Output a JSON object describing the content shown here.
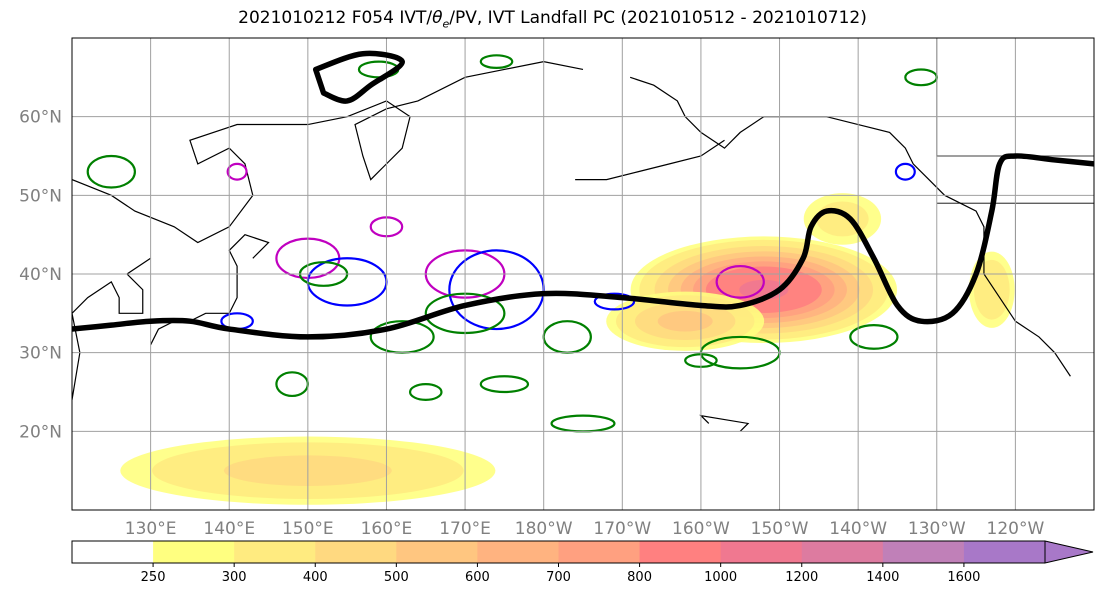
{
  "title_pre": "2021010212 F054 IVT/",
  "title_theta": "θ",
  "title_sub": "e",
  "title_post": "/PV, IVT Landfall PC (2021010512 - 2021010712)",
  "chart_data": {
    "type": "heatmap",
    "map": {
      "lon_range": [
        120,
        250
      ],
      "lat_range": [
        10,
        70
      ],
      "lat_ticks": [
        {
          "lat": 20,
          "label": "20°N"
        },
        {
          "lat": 30,
          "label": "30°N"
        },
        {
          "lat": 40,
          "label": "40°N"
        },
        {
          "lat": 50,
          "label": "50°N"
        },
        {
          "lat": 60,
          "label": "60°N"
        }
      ],
      "lon_ticks": [
        {
          "lon": 130,
          "label": "130°E"
        },
        {
          "lon": 140,
          "label": "140°E"
        },
        {
          "lon": 150,
          "label": "150°E"
        },
        {
          "lon": 160,
          "label": "160°E"
        },
        {
          "lon": 170,
          "label": "170°E"
        },
        {
          "lon": 180,
          "label": "180°W"
        },
        {
          "lon": 190,
          "label": "170°W"
        },
        {
          "lon": 200,
          "label": "160°W"
        },
        {
          "lon": 210,
          "label": "150°W"
        },
        {
          "lon": 220,
          "label": "140°W"
        },
        {
          "lon": 230,
          "label": "130°W"
        },
        {
          "lon": 240,
          "label": "120°W"
        }
      ],
      "grid": true
    },
    "colorbar": {
      "levels": [
        250,
        300,
        400,
        500,
        600,
        700,
        800,
        1000,
        1200,
        1400,
        1600
      ],
      "labels": [
        "250",
        "300",
        "400",
        "500",
        "600",
        "700",
        "800",
        "1000",
        "1200",
        "1400",
        "1600"
      ],
      "colors": [
        "#ffffff",
        "#ffff80",
        "#ffeb80",
        "#ffd980",
        "#ffc680",
        "#ffb380",
        "#ffa080",
        "#ff8080",
        "#f07890",
        "#dd7ba0",
        "#c080b8",
        "#a878c8"
      ],
      "extend": "max"
    },
    "ivt_regions": [
      {
        "name": "central_pacific_ar",
        "lon": 208,
        "lat": 38,
        "peak": 1050,
        "sx": 10,
        "sy": 4
      },
      {
        "name": "ar_tail",
        "lon": 198,
        "lat": 34,
        "peak": 550,
        "sx": 8,
        "sy": 3
      },
      {
        "name": "tropical_band",
        "lon": 150,
        "lat": 15,
        "peak": 450,
        "sx": 22,
        "sy": 4
      },
      {
        "name": "west_coast",
        "lon": 237,
        "lat": 38,
        "peak": 400,
        "sx": 3,
        "sy": 5
      },
      {
        "name": "gulf_of_alaska",
        "lon": 218,
        "lat": 47,
        "peak": 350,
        "sx": 6,
        "sy": 4
      }
    ],
    "series": [
      {
        "color": "#000000",
        "points": [
          [
            120,
            33
          ],
          [
            125,
            33.5
          ],
          [
            130,
            34
          ],
          [
            135,
            34
          ],
          [
            140,
            33
          ],
          [
            150,
            32
          ],
          [
            160,
            33
          ],
          [
            170,
            36
          ],
          [
            180,
            37.5
          ],
          [
            190,
            37
          ],
          [
            200,
            36
          ],
          [
            205,
            36
          ],
          [
            210,
            38
          ],
          [
            213,
            42
          ],
          [
            214,
            46
          ],
          [
            216,
            48
          ],
          [
            219,
            47
          ],
          [
            222,
            42
          ],
          [
            225,
            36
          ],
          [
            228,
            34
          ],
          [
            232,
            35
          ],
          [
            235,
            40
          ],
          [
            237,
            48
          ],
          [
            238,
            54
          ],
          [
            240,
            55
          ],
          [
            245,
            54.5
          ],
          [
            250,
            54
          ]
        ]
      },
      {
        "color": "#000000",
        "closed": true,
        "points": [
          [
            151,
            66
          ],
          [
            157,
            68
          ],
          [
            162,
            67
          ],
          [
            158,
            64
          ],
          [
            155,
            62
          ],
          [
            152,
            63
          ]
        ]
      }
    ]
  }
}
